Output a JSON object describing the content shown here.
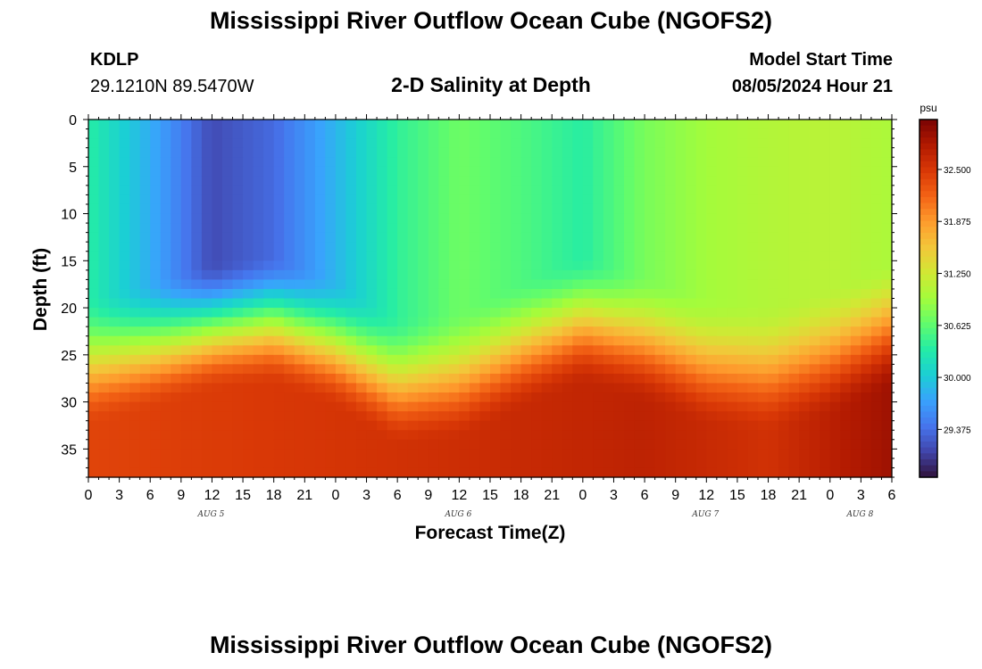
{
  "header": {
    "title": "Mississippi River Outflow Ocean Cube (NGOFS2)",
    "station_id": "KDLP",
    "station_coords": "29.1210N  89.5470W",
    "subtitle": "2-D Salinity at Depth",
    "start_label": "Model Start Time",
    "start_value": "08/05/2024 Hour 21"
  },
  "footer": {
    "title_repeat": "Mississippi River Outflow Ocean Cube (NGOFS2)"
  },
  "chart_data": {
    "type": "heatmap",
    "title": "2-D Salinity at Depth",
    "xlabel": "Forecast Time(Z)",
    "ylabel": "Depth (ft)",
    "colorbar_unit": "psu",
    "colorbar_ticks": [
      "32.500",
      "31.875",
      "31.250",
      "30.625",
      "30.000",
      "29.375"
    ],
    "colorbar_range": [
      28.8,
      33.1
    ],
    "colormap": [
      "#30123b",
      "#4145ab",
      "#4675ed",
      "#39a2fc",
      "#1bcfd4",
      "#24eca6",
      "#61fc6c",
      "#a4fc3b",
      "#d1e834",
      "#f3c63a",
      "#fe9b2d",
      "#f36315",
      "#d93806",
      "#b11901",
      "#7a0403"
    ],
    "y_range_ft": [
      0,
      38
    ],
    "y_ticks": [
      0,
      5,
      10,
      15,
      20,
      25,
      30,
      35
    ],
    "x_range_hours": [
      0,
      78
    ],
    "x_tick_labels": [
      "0",
      "3",
      "6",
      "9",
      "12",
      "15",
      "18",
      "21",
      "0",
      "3",
      "6",
      "9",
      "12",
      "15",
      "18",
      "21",
      "0",
      "3",
      "6",
      "9",
      "12",
      "15",
      "18",
      "21",
      "0",
      "3",
      "6"
    ],
    "date_labels": [
      {
        "text": "AUG 5",
        "hour": 12
      },
      {
        "text": "AUG 6",
        "hour": 36
      },
      {
        "text": "AUG 7",
        "hour": 60
      },
      {
        "text": "AUG 8",
        "hour": 75
      }
    ],
    "halocline_depth_ft": [
      {
        "hour": 0,
        "depth": 25.8
      },
      {
        "hour": 6,
        "depth": 24.0
      },
      {
        "hour": 12,
        "depth": 22.0
      },
      {
        "hour": 18,
        "depth": 21.3
      },
      {
        "hour": 24,
        "depth": 23.8
      },
      {
        "hour": 30,
        "depth": 27.8
      },
      {
        "hour": 36,
        "depth": 27.2
      },
      {
        "hour": 42,
        "depth": 24.0
      },
      {
        "hour": 48,
        "depth": 21.3
      },
      {
        "hour": 54,
        "depth": 23.3
      },
      {
        "hour": 60,
        "depth": 25.8
      },
      {
        "hour": 66,
        "depth": 26.5
      },
      {
        "hour": 72,
        "depth": 24.8
      },
      {
        "hour": 78,
        "depth": 21.8
      }
    ],
    "surface_salinity_psu": [
      {
        "hour": 0,
        "value": 30.35
      },
      {
        "hour": 6,
        "value": 29.8
      },
      {
        "hour": 12,
        "value": 29.15
      },
      {
        "hour": 18,
        "value": 29.35
      },
      {
        "hour": 24,
        "value": 29.85
      },
      {
        "hour": 30,
        "value": 30.4
      },
      {
        "hour": 36,
        "value": 30.7
      },
      {
        "hour": 42,
        "value": 30.55
      },
      {
        "hour": 48,
        "value": 30.35
      },
      {
        "hour": 54,
        "value": 30.75
      },
      {
        "hour": 60,
        "value": 30.95
      },
      {
        "hour": 66,
        "value": 31.05
      },
      {
        "hour": 72,
        "value": 31.1
      },
      {
        "hour": 78,
        "value": 31.0
      }
    ],
    "bottom_salinity_psu": [
      {
        "hour": 0,
        "value": 32.4
      },
      {
        "hour": 30,
        "value": 32.55
      },
      {
        "hour": 54,
        "value": 32.7
      },
      {
        "hour": 66,
        "value": 32.55
      },
      {
        "hour": 78,
        "value": 32.9
      }
    ]
  }
}
